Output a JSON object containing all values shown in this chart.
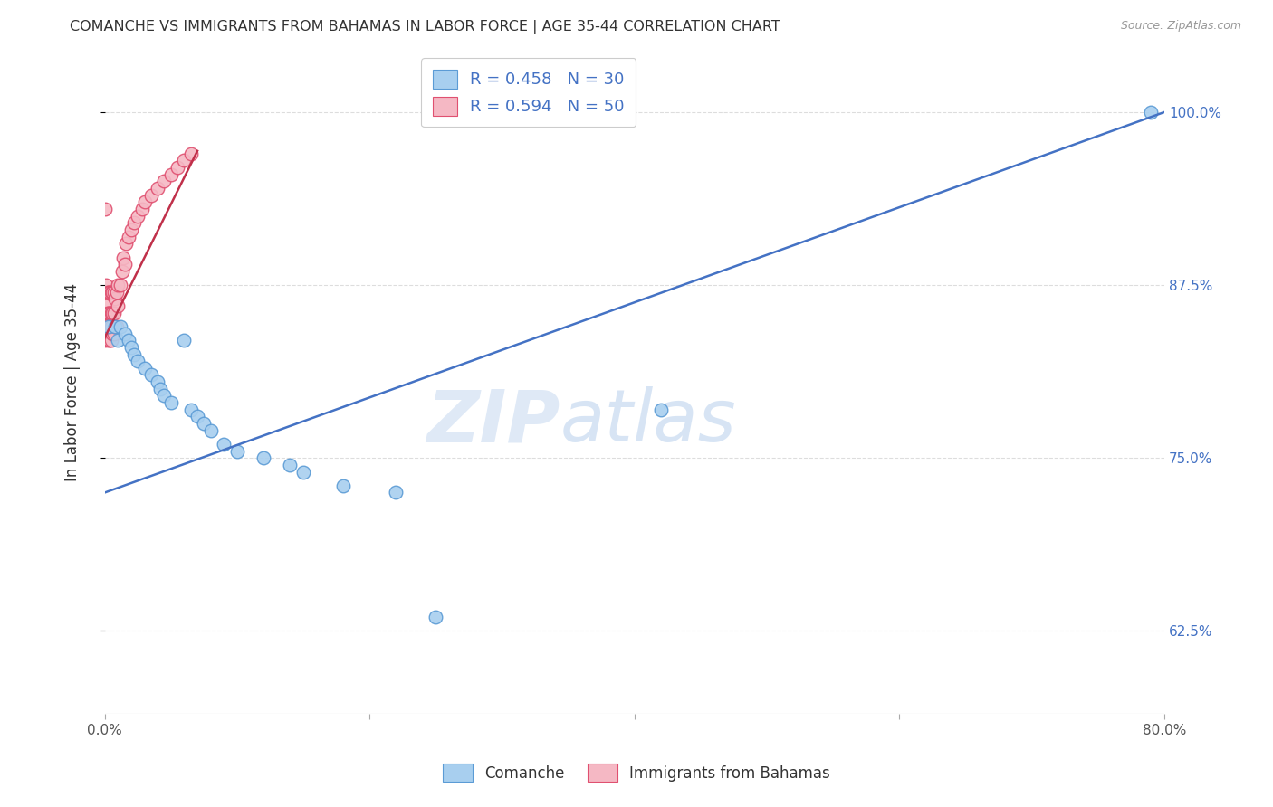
{
  "title": "COMANCHE VS IMMIGRANTS FROM BAHAMAS IN LABOR FORCE | AGE 35-44 CORRELATION CHART",
  "source": "Source: ZipAtlas.com",
  "ylabel": "In Labor Force | Age 35-44",
  "y_ticks": [
    0.625,
    0.75,
    0.875,
    1.0
  ],
  "y_tick_labels": [
    "62.5%",
    "75.0%",
    "87.5%",
    "100.0%"
  ],
  "xlim": [
    0.0,
    0.8
  ],
  "ylim": [
    0.565,
    1.045
  ],
  "comanche_R": 0.458,
  "comanche_N": 30,
  "bahamas_R": 0.594,
  "bahamas_N": 50,
  "comanche_color": "#A8CFEF",
  "bahamas_color": "#F5B8C4",
  "comanche_edge_color": "#5B9BD5",
  "bahamas_edge_color": "#E05070",
  "comanche_line_color": "#4472C4",
  "bahamas_line_color": "#C0304A",
  "legend_label_comanche": "Comanche",
  "legend_label_bahamas": "Immigrants from Bahamas",
  "watermark_zip": "ZIP",
  "watermark_atlas": "atlas",
  "comanche_x": [
    0.003,
    0.008,
    0.01,
    0.012,
    0.015,
    0.018,
    0.02,
    0.022,
    0.025,
    0.03,
    0.035,
    0.04,
    0.042,
    0.045,
    0.05,
    0.06,
    0.065,
    0.07,
    0.075,
    0.08,
    0.09,
    0.1,
    0.12,
    0.14,
    0.15,
    0.18,
    0.22,
    0.25,
    0.42,
    0.79
  ],
  "comanche_y": [
    0.845,
    0.845,
    0.835,
    0.845,
    0.84,
    0.835,
    0.83,
    0.825,
    0.82,
    0.815,
    0.81,
    0.805,
    0.8,
    0.795,
    0.79,
    0.835,
    0.785,
    0.78,
    0.775,
    0.77,
    0.76,
    0.755,
    0.75,
    0.745,
    0.74,
    0.73,
    0.725,
    0.635,
    0.785,
    1.0
  ],
  "bahamas_x": [
    0.0,
    0.0,
    0.0,
    0.0,
    0.001,
    0.001,
    0.002,
    0.002,
    0.002,
    0.003,
    0.003,
    0.003,
    0.003,
    0.004,
    0.004,
    0.004,
    0.005,
    0.005,
    0.005,
    0.005,
    0.006,
    0.006,
    0.006,
    0.007,
    0.007,
    0.007,
    0.008,
    0.008,
    0.009,
    0.009,
    0.01,
    0.01,
    0.012,
    0.013,
    0.014,
    0.015,
    0.016,
    0.018,
    0.02,
    0.022,
    0.025,
    0.028,
    0.03,
    0.035,
    0.04,
    0.045,
    0.05,
    0.055,
    0.06,
    0.065
  ],
  "bahamas_y": [
    0.835,
    0.845,
    0.855,
    0.93,
    0.86,
    0.875,
    0.84,
    0.855,
    0.87,
    0.835,
    0.845,
    0.855,
    0.87,
    0.835,
    0.855,
    0.87,
    0.835,
    0.845,
    0.855,
    0.87,
    0.84,
    0.855,
    0.87,
    0.84,
    0.855,
    0.87,
    0.845,
    0.865,
    0.845,
    0.87,
    0.86,
    0.875,
    0.875,
    0.885,
    0.895,
    0.89,
    0.905,
    0.91,
    0.915,
    0.92,
    0.925,
    0.93,
    0.935,
    0.94,
    0.945,
    0.95,
    0.955,
    0.96,
    0.965,
    0.97
  ],
  "background_color": "#FFFFFF",
  "grid_color": "#DDDDDD",
  "blue_line_x0": 0.0,
  "blue_line_y0": 0.725,
  "blue_line_x1": 0.8,
  "blue_line_y1": 1.0,
  "pink_line_x0": 0.0,
  "pink_line_y0": 0.837,
  "pink_line_x1": 0.07,
  "pink_line_y1": 0.972
}
